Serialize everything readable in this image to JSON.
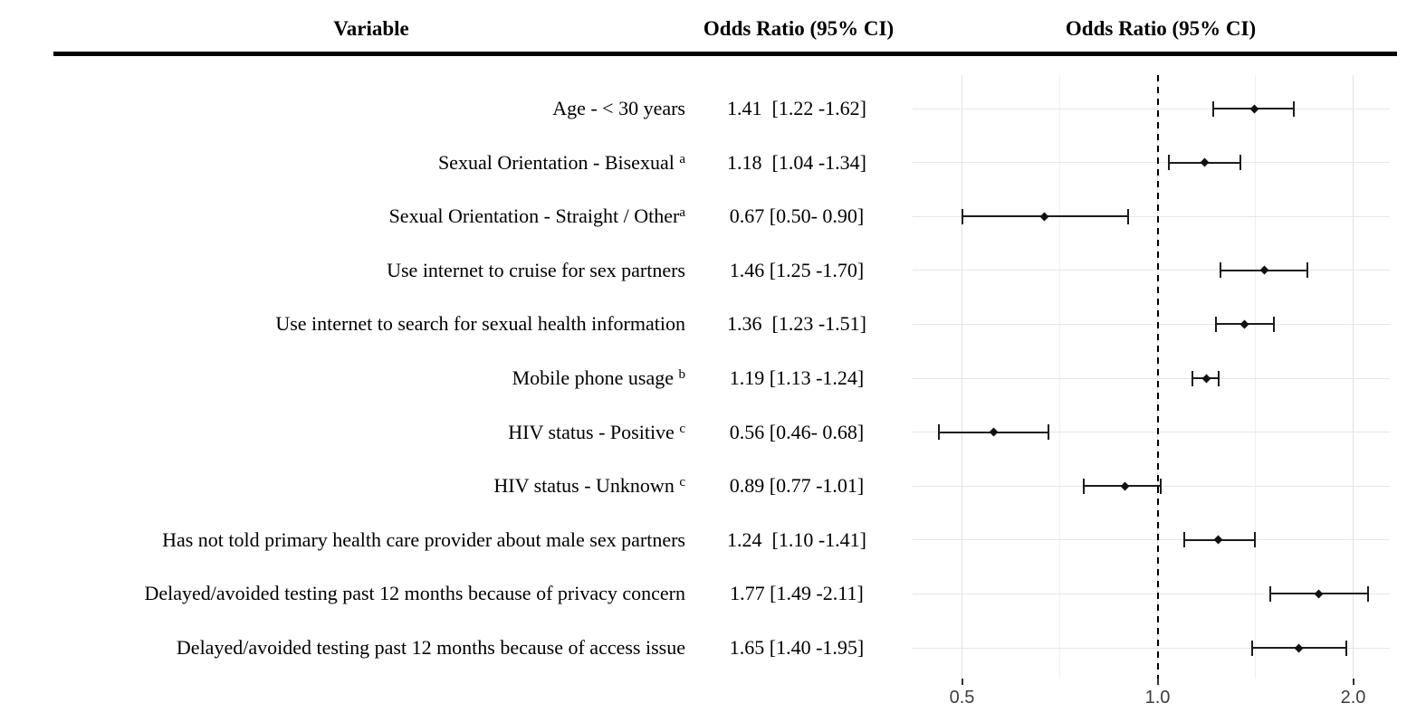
{
  "header": {
    "variable_col": "Variable",
    "or_col": "Odds Ratio (95% CI)",
    "plot_col": "Odds Ratio (95% CI)"
  },
  "chart_data": {
    "type": "forest",
    "title": "",
    "xlabel": "",
    "x_scale": "log2",
    "reference_line": 1.0,
    "x_ticks": [
      0.5,
      1.0,
      2.0
    ],
    "x_tick_labels": [
      "0.5",
      "1.0",
      "2.0"
    ],
    "x_minor_ticks": [
      0.7071,
      1.4142
    ],
    "x_range": [
      0.42,
      2.3
    ],
    "grid": "on",
    "rows": [
      {
        "label": "Age - < 30 years",
        "sup": "",
        "or_text": "1.41  [1.22 -1.62]",
        "or": 1.41,
        "lo": 1.22,
        "hi": 1.62
      },
      {
        "label": "Sexual Orientation - Bisexual ",
        "sup": "a",
        "or_text": "1.18  [1.04 -1.34]",
        "or": 1.18,
        "lo": 1.04,
        "hi": 1.34
      },
      {
        "label": "Sexual Orientation - Straight / Other",
        "sup": "a",
        "or_text": "0.67 [0.50- 0.90]",
        "or": 0.67,
        "lo": 0.5,
        "hi": 0.9
      },
      {
        "label": "Use internet to cruise for sex partners",
        "sup": "",
        "or_text": "1.46 [1.25 -1.70]",
        "or": 1.46,
        "lo": 1.25,
        "hi": 1.7
      },
      {
        "label": "Use internet to search for sexual health information",
        "sup": "",
        "or_text": "1.36  [1.23 -1.51]",
        "or": 1.36,
        "lo": 1.23,
        "hi": 1.51
      },
      {
        "label": "Mobile phone usage ",
        "sup": "b",
        "or_text": "1.19 [1.13 -1.24]",
        "or": 1.19,
        "lo": 1.13,
        "hi": 1.24
      },
      {
        "label": "HIV status - Positive ",
        "sup": "c",
        "or_text": "0.56 [0.46- 0.68]",
        "or": 0.56,
        "lo": 0.46,
        "hi": 0.68
      },
      {
        "label": "HIV status - Unknown ",
        "sup": "c",
        "or_text": "0.89 [0.77 -1.01]",
        "or": 0.89,
        "lo": 0.77,
        "hi": 1.01
      },
      {
        "label": "Has not told primary health care provider about male sex partners",
        "sup": "",
        "or_text": "1.24  [1.10 -1.41]",
        "or": 1.24,
        "lo": 1.1,
        "hi": 1.41
      },
      {
        "label": "Delayed/avoided testing past 12 months because of privacy concern",
        "sup": "",
        "or_text": "1.77 [1.49 -2.11]",
        "or": 1.77,
        "lo": 1.49,
        "hi": 2.11
      },
      {
        "label": "Delayed/avoided testing past 12 months because of access issue",
        "sup": "",
        "or_text": "1.65 [1.40 -1.95]",
        "or": 1.65,
        "lo": 1.4,
        "hi": 1.95
      }
    ]
  },
  "colors": {
    "text": "#000000",
    "error_bar": "#1c1c1c",
    "grid_major": "#e2e2e2",
    "grid_minor": "#f0f0f0",
    "axis_text": "#3d3d3d",
    "reference_line": "#000000"
  }
}
